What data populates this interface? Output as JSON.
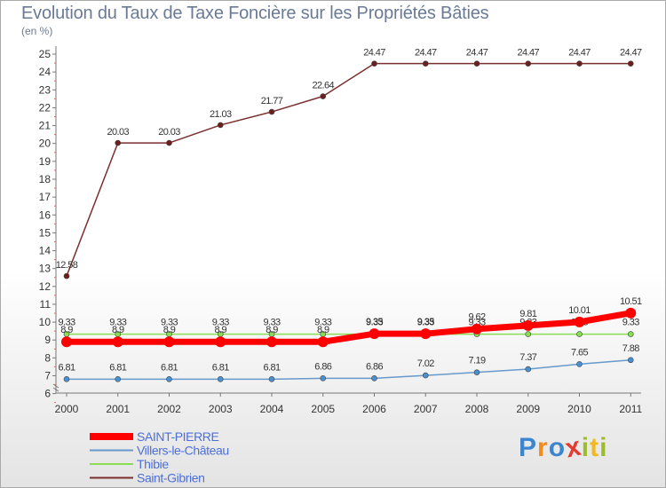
{
  "title": "Evolution du Taux de Taxe Foncière sur les Propriétés Bâties",
  "unit_label": "(en %)",
  "logo": {
    "text": "Proxiti",
    "colors": [
      "#3c86cf",
      "#f28b1c",
      "#3c86cf",
      "#e53a2f",
      "#9dbb2b",
      "#f2b81c",
      "#9dbb2b"
    ]
  },
  "chart_data": {
    "type": "line",
    "title": "Evolution du Taux de Taxe Foncière sur les Propriétés Bâties",
    "ylabel": "(en %)",
    "xlabel": "",
    "ylim": [
      6,
      25
    ],
    "yticks": [
      "6",
      "7",
      "8",
      "9",
      "10",
      "11",
      "12",
      "13",
      "14",
      "15",
      "16",
      "17",
      "18",
      "19",
      "20",
      "21",
      "22",
      "23",
      "24",
      "25"
    ],
    "categories": [
      "2000",
      "2001",
      "2002",
      "2003",
      "2004",
      "2005",
      "2006",
      "2007",
      "2008",
      "2009",
      "2010",
      "2011"
    ],
    "series": [
      {
        "name": "Saint-Gibrien",
        "color": "#7b2e2e",
        "markerFill": "#6b1f1f",
        "width": 1.5,
        "marker": 3,
        "values": [
          12.58,
          20.03,
          20.03,
          21.03,
          21.77,
          22.64,
          24.47,
          24.47,
          24.47,
          24.47,
          24.47,
          24.47
        ],
        "labels": [
          "12.58",
          "20.03",
          "20.03",
          "21.03",
          "21.77",
          "22.64",
          "24.47",
          "24.47",
          "24.47",
          "24.47",
          "24.47",
          "24.47"
        ]
      },
      {
        "name": "Thibie",
        "color": "#88dd55",
        "markerFill": "#88dd55",
        "width": 1.5,
        "marker": 3,
        "values": [
          9.33,
          9.33,
          9.33,
          9.33,
          9.33,
          9.33,
          9.33,
          9.33,
          9.33,
          9.33,
          9.33,
          9.33
        ],
        "labels": [
          "9.33",
          "9.33",
          "9.33",
          "9.33",
          "9.33",
          "9.33",
          "9.33",
          "9.33",
          "9.33",
          "9.33",
          "9.33",
          "9.33"
        ]
      },
      {
        "name": "Villers-le-Château",
        "color": "#6699cc",
        "markerFill": "#4a90d0",
        "width": 1.5,
        "marker": 3,
        "values": [
          6.81,
          6.81,
          6.81,
          6.81,
          6.81,
          6.86,
          6.86,
          7.02,
          7.19,
          7.37,
          7.65,
          7.88
        ],
        "labels": [
          "6.81",
          "6.81",
          "6.81",
          "6.81",
          "6.81",
          "6.86",
          "6.86",
          "7.02",
          "7.19",
          "7.37",
          "7.65",
          "7.88"
        ]
      },
      {
        "name": "SAINT-PIERRE",
        "color": "#ff0000",
        "markerFill": "#ff0000",
        "width": 7,
        "marker": 6,
        "values": [
          8.9,
          8.9,
          8.9,
          8.9,
          8.9,
          8.9,
          9.35,
          9.35,
          9.62,
          9.81,
          10.01,
          10.51
        ],
        "labels": [
          "8.9",
          "8.9",
          "8.9",
          "8.9",
          "8.9",
          "8.9",
          "9.35",
          "9.35",
          "9.62",
          "9.81",
          "10.01",
          "10.51"
        ]
      }
    ],
    "legend": {
      "position": "bottom-left",
      "entries": [
        {
          "name": "SAINT-PIERRE",
          "color": "#ff0000",
          "thick": true
        },
        {
          "name": "Villers-le-Château",
          "color": "#6699cc",
          "thick": false
        },
        {
          "name": "Thibie",
          "color": "#88dd55",
          "thick": false
        },
        {
          "name": "Saint-Gibrien",
          "color": "#7b2e2e",
          "thick": false
        }
      ]
    },
    "grid": false
  }
}
